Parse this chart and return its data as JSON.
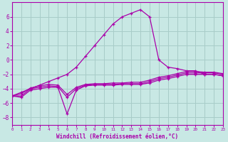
{
  "xlabel": "Windchill (Refroidissement éolien,°C)",
  "bg_color": "#c8e8e4",
  "grid_color": "#a8ccc8",
  "line_color": "#aa00aa",
  "ylim": [
    -9,
    8
  ],
  "xlim": [
    0,
    23
  ],
  "yticks": [
    -8,
    -6,
    -4,
    -2,
    0,
    2,
    4,
    6
  ],
  "xticks": [
    0,
    1,
    2,
    3,
    4,
    5,
    6,
    7,
    8,
    9,
    10,
    11,
    12,
    13,
    14,
    15,
    16,
    17,
    18,
    19,
    20,
    21,
    22,
    23
  ],
  "spike_x": [
    0,
    1,
    2,
    3,
    4,
    5,
    6,
    7,
    8,
    9,
    10,
    11,
    12,
    13,
    14,
    15,
    16,
    17,
    18,
    19,
    20,
    21,
    22,
    23
  ],
  "spike_y": [
    -5.0,
    -4.5,
    -4.0,
    -3.5,
    -3.0,
    -2.5,
    -2.0,
    -1.0,
    0.5,
    2.0,
    3.5,
    5.0,
    6.0,
    6.5,
    7.0,
    6.0,
    0.0,
    -1.0,
    -1.2,
    -1.5,
    -1.5,
    -2.0,
    -2.0,
    -2.2
  ],
  "line_a_x": [
    0,
    1,
    2,
    3,
    4,
    5,
    6,
    7,
    8,
    9,
    10,
    11,
    12,
    13,
    14,
    15,
    16,
    17,
    18,
    19,
    20,
    21,
    22,
    23
  ],
  "line_a_y": [
    -5.0,
    -5.2,
    -4.2,
    -4.0,
    -3.8,
    -3.8,
    -7.5,
    -4.2,
    -3.6,
    -3.5,
    -3.5,
    -3.5,
    -3.4,
    -3.4,
    -3.4,
    -3.2,
    -2.8,
    -2.6,
    -2.3,
    -2.0,
    -2.0,
    -2.0,
    -2.0,
    -2.2
  ],
  "line_b_x": [
    0,
    1,
    2,
    3,
    4,
    5,
    6,
    7,
    8,
    9,
    10,
    11,
    12,
    13,
    14,
    15,
    16,
    17,
    18,
    19,
    20,
    21,
    22,
    23
  ],
  "line_b_y": [
    -5.0,
    -5.0,
    -4.0,
    -3.8,
    -3.6,
    -3.7,
    -5.2,
    -4.0,
    -3.5,
    -3.4,
    -3.4,
    -3.4,
    -3.3,
    -3.3,
    -3.3,
    -3.0,
    -2.6,
    -2.4,
    -2.1,
    -1.8,
    -1.8,
    -1.8,
    -1.8,
    -2.0
  ],
  "line_c_x": [
    0,
    1,
    2,
    3,
    4,
    5,
    6,
    7,
    8,
    9,
    10,
    11,
    12,
    13,
    14,
    15,
    16,
    17,
    18,
    19,
    20,
    21,
    22,
    23
  ],
  "line_c_y": [
    -5.0,
    -4.7,
    -3.9,
    -3.6,
    -3.4,
    -3.5,
    -4.8,
    -3.8,
    -3.4,
    -3.3,
    -3.3,
    -3.2,
    -3.2,
    -3.1,
    -3.1,
    -2.8,
    -2.4,
    -2.2,
    -1.9,
    -1.6,
    -1.6,
    -1.7,
    -1.7,
    -1.9
  ]
}
